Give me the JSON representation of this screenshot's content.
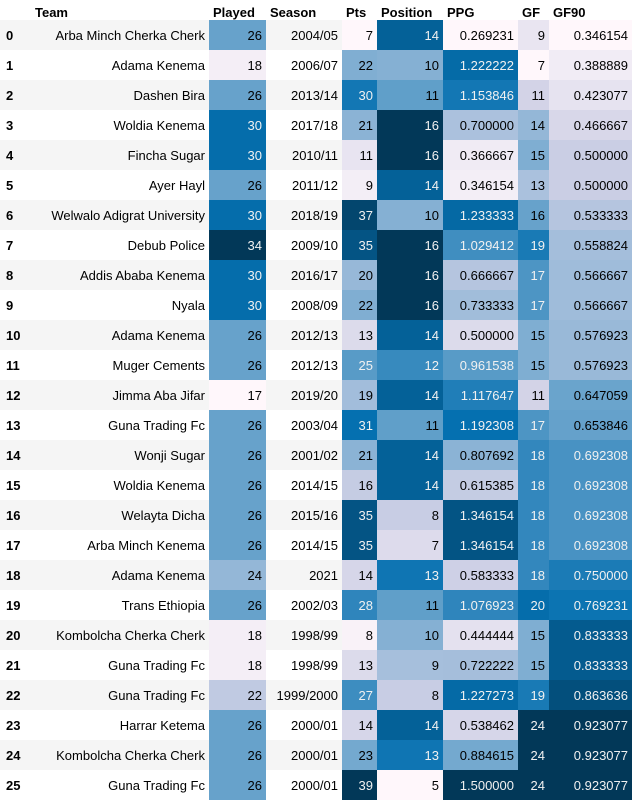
{
  "columns": [
    "",
    "Team",
    "Played",
    "Season",
    "Pts",
    "Position",
    "PPG",
    "GF",
    "GF90"
  ],
  "colormap": {
    "low": "#fff7fb",
    "mid": "#74a9cf",
    "high": "#023858"
  },
  "gradient_columns": [
    "Played",
    "Position",
    "PPG",
    "GF",
    "GF90"
  ],
  "rows": [
    {
      "idx": "0",
      "team": "Arba Minch Cherka Cherk",
      "played": "26",
      "season": "2004/05",
      "pts": "7",
      "position": "14",
      "ppg": "0.269231",
      "gf": "9",
      "gf90": "0.346154"
    },
    {
      "idx": "1",
      "team": "Adama Kenema",
      "played": "18",
      "season": "2006/07",
      "pts": "22",
      "position": "10",
      "ppg": "1.222222",
      "gf": "7",
      "gf90": "0.388889"
    },
    {
      "idx": "2",
      "team": "Dashen Bira",
      "played": "26",
      "season": "2013/14",
      "pts": "30",
      "position": "11",
      "ppg": "1.153846",
      "gf": "11",
      "gf90": "0.423077"
    },
    {
      "idx": "3",
      "team": "Woldia Kenema",
      "played": "30",
      "season": "2017/18",
      "pts": "21",
      "position": "16",
      "ppg": "0.700000",
      "gf": "14",
      "gf90": "0.466667"
    },
    {
      "idx": "4",
      "team": "Fincha Sugar",
      "played": "30",
      "season": "2010/11",
      "pts": "11",
      "position": "16",
      "ppg": "0.366667",
      "gf": "15",
      "gf90": "0.500000"
    },
    {
      "idx": "5",
      "team": "Ayer Hayl",
      "played": "26",
      "season": "2011/12",
      "pts": "9",
      "position": "14",
      "ppg": "0.346154",
      "gf": "13",
      "gf90": "0.500000"
    },
    {
      "idx": "6",
      "team": "Welwalo Adigrat University",
      "played": "30",
      "season": "2018/19",
      "pts": "37",
      "position": "10",
      "ppg": "1.233333",
      "gf": "16",
      "gf90": "0.533333"
    },
    {
      "idx": "7",
      "team": "Debub Police",
      "played": "34",
      "season": "2009/10",
      "pts": "35",
      "position": "16",
      "ppg": "1.029412",
      "gf": "19",
      "gf90": "0.558824"
    },
    {
      "idx": "8",
      "team": "Addis Ababa Kenema",
      "played": "30",
      "season": "2016/17",
      "pts": "20",
      "position": "16",
      "ppg": "0.666667",
      "gf": "17",
      "gf90": "0.566667"
    },
    {
      "idx": "9",
      "team": "Nyala",
      "played": "30",
      "season": "2008/09",
      "pts": "22",
      "position": "16",
      "ppg": "0.733333",
      "gf": "17",
      "gf90": "0.566667"
    },
    {
      "idx": "10",
      "team": "Adama Kenema",
      "played": "26",
      "season": "2012/13",
      "pts": "13",
      "position": "14",
      "ppg": "0.500000",
      "gf": "15",
      "gf90": "0.576923"
    },
    {
      "idx": "11",
      "team": "Muger Cements",
      "played": "26",
      "season": "2012/13",
      "pts": "25",
      "position": "12",
      "ppg": "0.961538",
      "gf": "15",
      "gf90": "0.576923"
    },
    {
      "idx": "12",
      "team": "Jimma Aba Jifar",
      "played": "17",
      "season": "2019/20",
      "pts": "19",
      "position": "14",
      "ppg": "1.117647",
      "gf": "11",
      "gf90": "0.647059"
    },
    {
      "idx": "13",
      "team": "Guna Trading Fc",
      "played": "26",
      "season": "2003/04",
      "pts": "31",
      "position": "11",
      "ppg": "1.192308",
      "gf": "17",
      "gf90": "0.653846"
    },
    {
      "idx": "14",
      "team": "Wonji Sugar",
      "played": "26",
      "season": "2001/02",
      "pts": "21",
      "position": "14",
      "ppg": "0.807692",
      "gf": "18",
      "gf90": "0.692308"
    },
    {
      "idx": "15",
      "team": "Woldia Kenema",
      "played": "26",
      "season": "2014/15",
      "pts": "16",
      "position": "14",
      "ppg": "0.615385",
      "gf": "18",
      "gf90": "0.692308"
    },
    {
      "idx": "16",
      "team": "Welayta Dicha",
      "played": "26",
      "season": "2015/16",
      "pts": "35",
      "position": "8",
      "ppg": "1.346154",
      "gf": "18",
      "gf90": "0.692308"
    },
    {
      "idx": "17",
      "team": "Arba Minch Kenema",
      "played": "26",
      "season": "2014/15",
      "pts": "35",
      "position": "7",
      "ppg": "1.346154",
      "gf": "18",
      "gf90": "0.692308"
    },
    {
      "idx": "18",
      "team": "Adama Kenema",
      "played": "24",
      "season": "2021",
      "pts": "14",
      "position": "13",
      "ppg": "0.583333",
      "gf": "18",
      "gf90": "0.750000"
    },
    {
      "idx": "19",
      "team": "Trans Ethiopia",
      "played": "26",
      "season": "2002/03",
      "pts": "28",
      "position": "11",
      "ppg": "1.076923",
      "gf": "20",
      "gf90": "0.769231"
    },
    {
      "idx": "20",
      "team": "Kombolcha Cherka Cherk",
      "played": "18",
      "season": "1998/99",
      "pts": "8",
      "position": "10",
      "ppg": "0.444444",
      "gf": "15",
      "gf90": "0.833333"
    },
    {
      "idx": "21",
      "team": "Guna Trading Fc",
      "played": "18",
      "season": "1998/99",
      "pts": "13",
      "position": "9",
      "ppg": "0.722222",
      "gf": "15",
      "gf90": "0.833333"
    },
    {
      "idx": "22",
      "team": "Guna Trading Fc",
      "played": "22",
      "season": "1999/2000",
      "pts": "27",
      "position": "8",
      "ppg": "1.227273",
      "gf": "19",
      "gf90": "0.863636"
    },
    {
      "idx": "23",
      "team": "Harrar Ketema",
      "played": "26",
      "season": "2000/01",
      "pts": "14",
      "position": "14",
      "ppg": "0.538462",
      "gf": "24",
      "gf90": "0.923077"
    },
    {
      "idx": "24",
      "team": "Kombolcha Cherka Cherk",
      "played": "26",
      "season": "2000/01",
      "pts": "23",
      "position": "13",
      "ppg": "0.884615",
      "gf": "24",
      "gf90": "0.923077"
    },
    {
      "idx": "25",
      "team": "Guna Trading Fc",
      "played": "26",
      "season": "2000/01",
      "pts": "39",
      "position": "5",
      "ppg": "1.500000",
      "gf": "24",
      "gf90": "0.923077"
    }
  ]
}
